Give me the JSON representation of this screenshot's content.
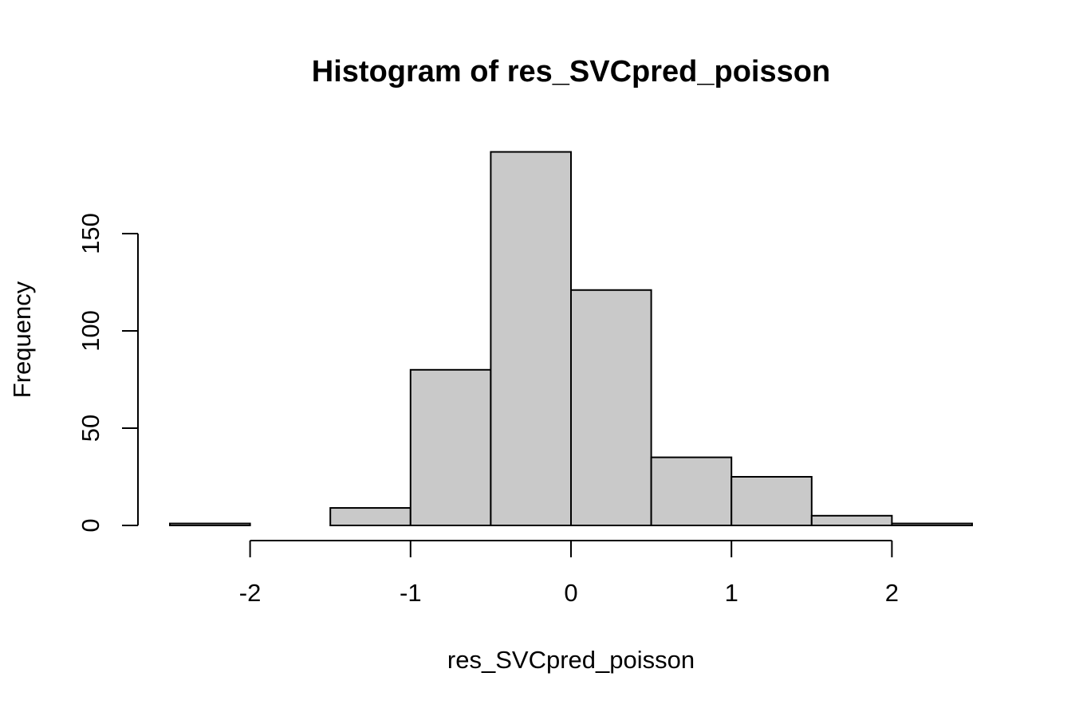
{
  "chart_data": {
    "type": "bar",
    "title": "Histogram of res_SVCpred_poisson",
    "xlabel": "res_SVCpred_poisson",
    "ylabel": "Frequency",
    "bins": [
      {
        "from": -2.5,
        "to": -2.0,
        "count": 1
      },
      {
        "from": -2.0,
        "to": -1.5,
        "count": 0
      },
      {
        "from": -1.5,
        "to": -1.0,
        "count": 9
      },
      {
        "from": -1.0,
        "to": -0.5,
        "count": 80
      },
      {
        "from": -0.5,
        "to": 0.0,
        "count": 192
      },
      {
        "from": 0.0,
        "to": 0.5,
        "count": 121
      },
      {
        "from": 0.5,
        "to": 1.0,
        "count": 35
      },
      {
        "from": 1.0,
        "to": 1.5,
        "count": 25
      },
      {
        "from": 1.5,
        "to": 2.0,
        "count": 5
      },
      {
        "from": 2.0,
        "to": 2.5,
        "count": 1
      }
    ],
    "xlim": [
      -2.5,
      2.5
    ],
    "ylim": [
      0,
      192
    ],
    "x_ticks": [
      "-2",
      "-1",
      "0",
      "1",
      "2"
    ],
    "y_ticks": [
      "0",
      "50",
      "100",
      "150"
    ],
    "bar_color": "#C9C9C9",
    "grid": false,
    "legend": "none"
  }
}
